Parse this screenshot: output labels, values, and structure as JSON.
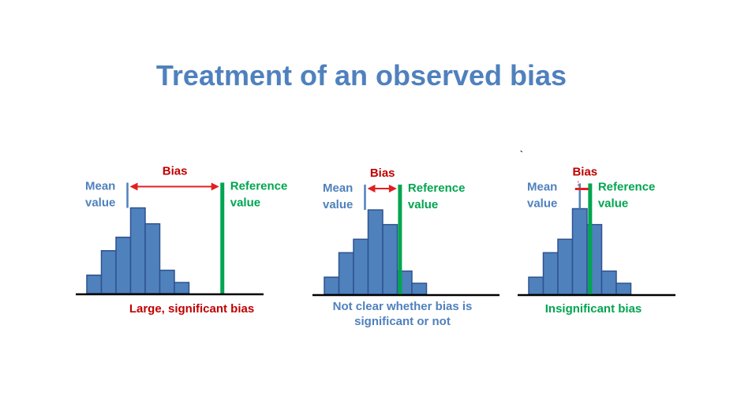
{
  "title": "Treatment of an observed bias",
  "stray_mark": "`",
  "colors": {
    "title": "#4f81bd",
    "bar_fill": "#4f81bd",
    "bar_stroke": "#2f528f",
    "mean_line": "#4f81bd",
    "reference_line": "#00a550",
    "bias_arrow": "#e02020",
    "bias_text": "#c00000",
    "reference_text": "#00a550",
    "baseline": "#000000"
  },
  "panels": [
    {
      "bias_label": "Bias",
      "mean_label_line1": "Mean",
      "mean_label_line2": "value",
      "reference_label_line1": "Reference",
      "reference_label_line2": "value",
      "caption_lines": [
        "Large, significant bias"
      ],
      "caption_style": "red",
      "bar_values": [
        1.5,
        3.5,
        4.6,
        7.0,
        5.7,
        1.9,
        0.9
      ],
      "mean_bin": 3,
      "reference_offset_bins": 6.5,
      "arrow_style": "double-arrow"
    },
    {
      "bias_label": "Bias",
      "mean_label_line1": "Mean",
      "mean_label_line2": "value",
      "reference_label_line1": "Reference",
      "reference_label_line2": "value",
      "caption_lines": [
        "Not clear whether bias is",
        "significant or not"
      ],
      "caption_style": "blue",
      "bar_values": [
        1.4,
        3.4,
        4.5,
        6.9,
        5.7,
        1.9,
        0.9
      ],
      "mean_bin": 3,
      "reference_offset_bins": 2.4,
      "arrow_style": "double-arrow"
    },
    {
      "bias_label": "Bias",
      "mean_label_line1": "Mean",
      "mean_label_line2": "value",
      "reference_label_line1": "Reference",
      "reference_label_line2": "value",
      "caption_lines": [
        "Insignificant bias"
      ],
      "caption_style": "green",
      "bar_values": [
        1.4,
        3.4,
        4.5,
        7.0,
        5.7,
        1.9,
        0.9
      ],
      "mean_bin": 4,
      "reference_offset_bins": 0.6,
      "arrow_style": "short-bar"
    }
  ]
}
